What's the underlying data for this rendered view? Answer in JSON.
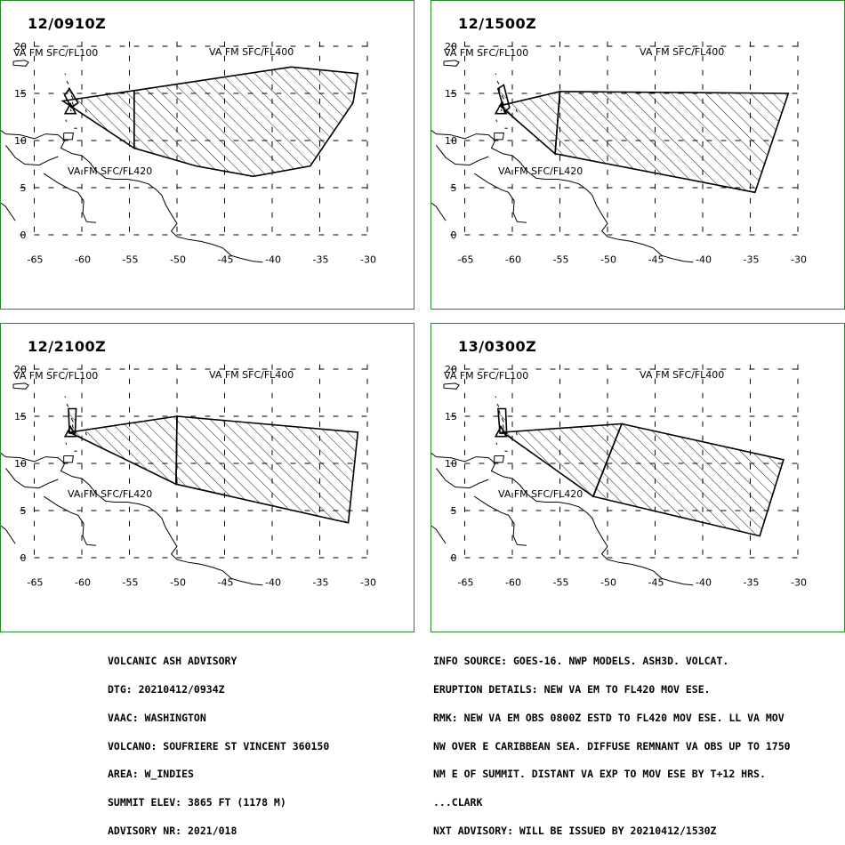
{
  "panels": [
    {
      "title": "12/0910Z",
      "label_left": "VA FM SFC/FL100",
      "label_right": "VA FM SFC/FL400",
      "label_lower": "VA FM SFC/FL420",
      "polygons": [
        {
          "name": "ash-region-fl420",
          "points": [
            [
              -62,
              14.2
            ],
            [
              -54.5,
              15.3
            ],
            [
              -54.5,
              9.2
            ]
          ]
        },
        {
          "name": "ash-region-fl400",
          "points": [
            [
              -54.5,
              15.3
            ],
            [
              -38,
              17.8
            ],
            [
              -31,
              17.1
            ],
            [
              -31.5,
              14
            ],
            [
              -36,
              7.3
            ],
            [
              -42,
              6.2
            ],
            [
              -48,
              7.3
            ],
            [
              -54.5,
              9.2
            ]
          ]
        },
        {
          "name": "ash-region-fl100",
          "points": [
            [
              -61.8,
              14.8
            ],
            [
              -61.3,
              15.5
            ],
            [
              -60.4,
              14.0
            ],
            [
              -61.1,
              13.5
            ]
          ]
        }
      ]
    },
    {
      "title": "12/1500Z",
      "label_left": "VA FM SFC/FL100",
      "label_right": "VA FM SFC/FL400",
      "label_lower": "VA FM SFC/FL420",
      "polygons": [
        {
          "name": "ash-region-fl420",
          "points": [
            [
              -61.3,
              13.7
            ],
            [
              -55,
              15.2
            ],
            [
              -55.5,
              8.6
            ]
          ]
        },
        {
          "name": "ash-region-fl400",
          "points": [
            [
              -55,
              15.2
            ],
            [
              -31,
              15.0
            ],
            [
              -34.5,
              4.5
            ],
            [
              -55.5,
              8.6
            ]
          ]
        },
        {
          "name": "ash-region-fl100",
          "points": [
            [
              -61.5,
              15.5
            ],
            [
              -60.9,
              15.9
            ],
            [
              -60.3,
              13.5
            ],
            [
              -60.8,
              13.0
            ]
          ]
        }
      ]
    },
    {
      "title": "12/2100Z",
      "label_left": "VA FM SFC/FL100",
      "label_right": "VA FM SFC/FL400",
      "label_lower": "VA FM SFC/FL420",
      "polygons": [
        {
          "name": "ash-region-fl420",
          "points": [
            [
              -61.3,
              13.3
            ],
            [
              -50,
              15.0
            ],
            [
              -50.1,
              7.8
            ]
          ]
        },
        {
          "name": "ash-region-fl400",
          "points": [
            [
              -50,
              15.0
            ],
            [
              -31,
              13.3
            ],
            [
              -32,
              3.7
            ],
            [
              -50.1,
              7.8
            ]
          ]
        },
        {
          "name": "ash-region-fl100",
          "points": [
            [
              -61.4,
              15.8
            ],
            [
              -60.6,
              15.8
            ],
            [
              -60.7,
              13.2
            ],
            [
              -61.3,
              13.2
            ]
          ]
        }
      ]
    },
    {
      "title": "13/0300Z",
      "label_left": "VA FM SFC/FL100",
      "label_right": "VA FM SFC/FL400",
      "label_lower": "VA FM SFC/FL420",
      "polygons": [
        {
          "name": "ash-region-fl420",
          "points": [
            [
              -61,
              13.3
            ],
            [
              -48.5,
              14.2
            ],
            [
              -51.5,
              6.5
            ]
          ]
        },
        {
          "name": "ash-region-fl400",
          "points": [
            [
              -48.5,
              14.2
            ],
            [
              -31.5,
              10.4
            ],
            [
              -34,
              2.3
            ],
            [
              -51.5,
              6.5
            ]
          ]
        },
        {
          "name": "ash-region-fl100",
          "points": [
            [
              -61.5,
              15.8
            ],
            [
              -60.7,
              15.8
            ],
            [
              -60.6,
              13.2
            ],
            [
              -61.3,
              13.2
            ]
          ]
        }
      ]
    }
  ],
  "axes": {
    "lon_ticks": [
      -65,
      -60,
      -55,
      -50,
      -45,
      -40,
      -35,
      -30
    ],
    "lon_tick_labels": [
      "-65",
      "-60",
      "-55",
      "-50",
      "-45",
      "-40",
      "-35",
      "-30"
    ],
    "lat_ticks": [
      0,
      5,
      10,
      15,
      20
    ],
    "lat_tick_labels": [
      "0",
      "5",
      "10",
      "15",
      "20"
    ],
    "lon_range": [
      -66.5,
      -29.5
    ],
    "lat_range": [
      -0.5,
      20.5
    ],
    "grid": "dashed"
  },
  "volcano": {
    "name": "SOUFRIERE ST VINCENT",
    "lon": -61.2,
    "lat": 13.33,
    "marker": "triangle-icon"
  },
  "colors": {
    "frame": "#2a8a2a",
    "ink": "#000000",
    "background": "#ffffff"
  },
  "advisory_left": [
    "VOLCANIC ASH ADVISORY",
    "DTG: 20210412/0934Z",
    "VAAC: WASHINGTON",
    "VOLCANO: SOUFRIERE ST VINCENT 360150",
    "AREA: W_INDIES",
    "SUMMIT ELEV: 3865 FT (1178 M)",
    "ADVISORY NR: 2021/018"
  ],
  "advisory_right": [
    "INFO SOURCE: GOES-16. NWP MODELS. ASH3D. VOLCAT.",
    "ERUPTION DETAILS: NEW VA EM TO FL420 MOV ESE.",
    "RMK: NEW VA EM OBS 0800Z ESTD TO FL420 MOV ESE. LL VA MOV",
    "NW OVER E CARIBBEAN SEA. DIFFUSE REMNANT VA OBS UP TO 1750",
    "NM E OF SUMMIT. DISTANT VA EXP TO MOV ESE BY T+12 HRS.",
    "...CLARK",
    "NXT ADVISORY: WILL BE ISSUED BY 20210412/1530Z"
  ]
}
